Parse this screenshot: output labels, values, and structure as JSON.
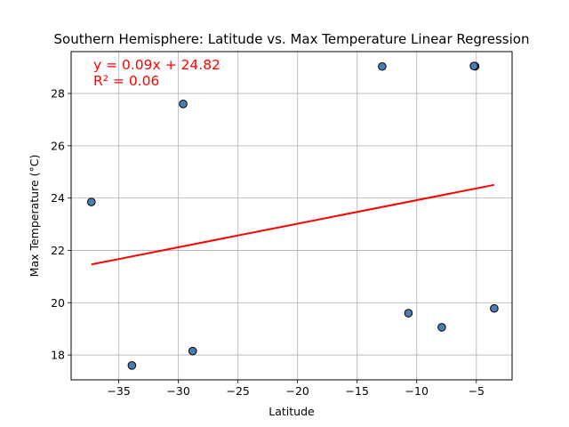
{
  "chart_data": {
    "type": "scatter",
    "title": "Southern Hemisphere: Latitude vs. Max Temperature Linear Regression",
    "xlabel": "Latitude",
    "ylabel": "Max Temperature (°C)",
    "xlim": [
      -39.0,
      -2.0
    ],
    "ylim": [
      17.05,
      29.6
    ],
    "grid": true,
    "xticks": [
      -35,
      -30,
      -25,
      -20,
      -15,
      -10,
      -5
    ],
    "xtick_labels": [
      "−35",
      "−30",
      "−25",
      "−20",
      "−15",
      "−10",
      "−5"
    ],
    "yticks": [
      18,
      20,
      22,
      24,
      26,
      28
    ],
    "ytick_labels": [
      "18",
      "20",
      "22",
      "24",
      "26",
      "28"
    ],
    "points": [
      {
        "x": -37.3,
        "y": 23.85
      },
      {
        "x": -33.9,
        "y": 17.6
      },
      {
        "x": -29.6,
        "y": 27.6
      },
      {
        "x": -28.8,
        "y": 18.15
      },
      {
        "x": -12.9,
        "y": 29.03
      },
      {
        "x": -10.7,
        "y": 19.6
      },
      {
        "x": -7.9,
        "y": 19.06
      },
      {
        "x": -5.1,
        "y": 29.04
      },
      {
        "x": -5.2,
        "y": 29.05
      },
      {
        "x": -3.5,
        "y": 19.78
      }
    ],
    "regression": {
      "slope": 0.09,
      "intercept": 24.82,
      "x_range": [
        -37.3,
        -3.5
      ],
      "equation_label": "y = 0.09x + 24.82",
      "r2_label": "R² = 0.06",
      "color": "#ff0000"
    },
    "colors": {
      "marker_fill": "#4a7eb3",
      "marker_edge": "#000000",
      "grid": "#b0b0b0",
      "regression_line": "#ff0000",
      "annotation": "#ff0000"
    }
  }
}
